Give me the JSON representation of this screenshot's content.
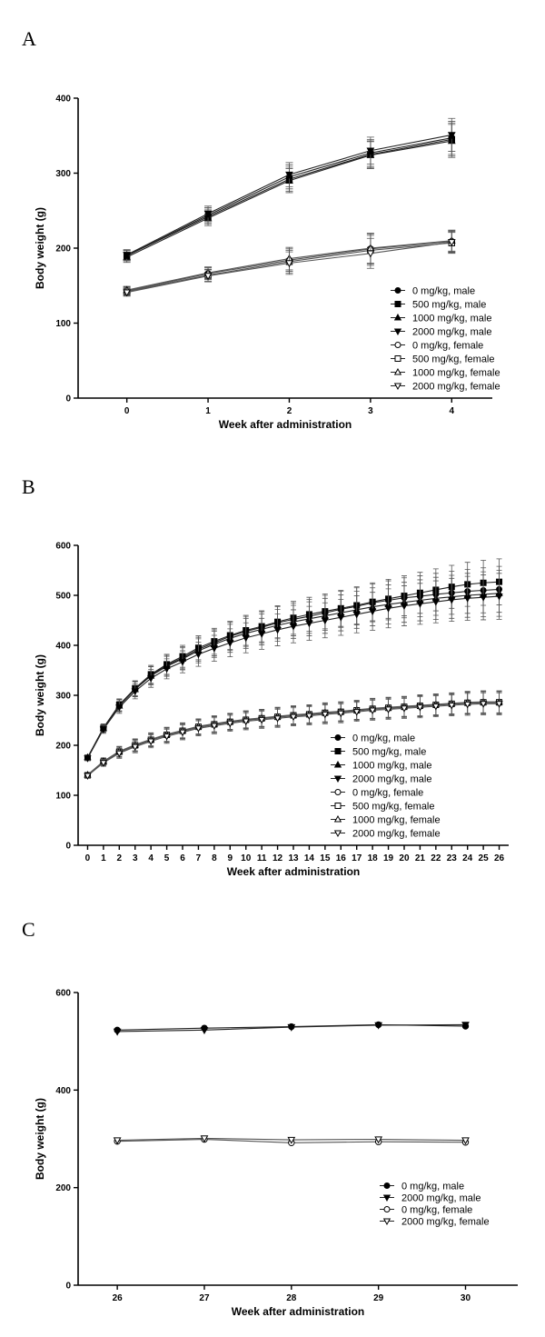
{
  "panels": {
    "A": {
      "letter": "A"
    },
    "B": {
      "letter": "B"
    },
    "C": {
      "letter": "C"
    }
  },
  "chart_data": [
    {
      "id": "A",
      "type": "line",
      "title": "",
      "xlabel": "Week after administration",
      "ylabel": "Body weight (g)",
      "xlim": [
        -0.6,
        4.5
      ],
      "ylim": [
        0,
        400
      ],
      "xticks": [
        0,
        1,
        2,
        3,
        4
      ],
      "yticks": [
        0,
        100,
        200,
        300,
        400
      ],
      "legend_position": "bottom-right",
      "x": [
        0,
        1,
        2,
        3,
        4
      ],
      "series": [
        {
          "name": "0 mg/kg, male",
          "marker": "circle",
          "filled": true,
          "values": [
            190,
            244,
            295,
            327,
            347
          ],
          "err": [
            7,
            10,
            16,
            18,
            22
          ]
        },
        {
          "name": "500 mg/kg, male",
          "marker": "square",
          "filled": true,
          "values": [
            190,
            242,
            292,
            325,
            345
          ],
          "err": [
            7,
            10,
            16,
            18,
            22
          ]
        },
        {
          "name": "1000 mg/kg, male",
          "marker": "triangle-up",
          "filled": true,
          "values": [
            188,
            240,
            290,
            324,
            343
          ],
          "err": [
            7,
            10,
            16,
            18,
            22
          ]
        },
        {
          "name": "2000 mg/kg, male",
          "marker": "triangle-down",
          "filled": true,
          "values": [
            191,
            246,
            298,
            330,
            351
          ],
          "err": [
            7,
            10,
            16,
            18,
            22
          ]
        },
        {
          "name": "0 mg/kg, female",
          "marker": "circle",
          "filled": false,
          "values": [
            143,
            166,
            184,
            199,
            209
          ],
          "err": [
            5,
            8,
            15,
            20,
            14
          ]
        },
        {
          "name": "500 mg/kg, female",
          "marker": "square",
          "filled": false,
          "values": [
            142,
            164,
            182,
            197,
            207
          ],
          "err": [
            5,
            8,
            15,
            20,
            14
          ]
        },
        {
          "name": "1000 mg/kg, female",
          "marker": "triangle-up",
          "filled": false,
          "values": [
            144,
            167,
            186,
            200,
            210
          ],
          "err": [
            5,
            8,
            15,
            20,
            14
          ]
        },
        {
          "name": "2000 mg/kg, female",
          "marker": "triangle-down",
          "filled": false,
          "values": [
            141,
            163,
            180,
            193,
            208
          ],
          "err": [
            5,
            8,
            15,
            20,
            14
          ]
        }
      ]
    },
    {
      "id": "B",
      "type": "line",
      "title": "",
      "xlabel": "Week after administration",
      "ylabel": "Body weight (g)",
      "xlim": [
        -0.6,
        26.6
      ],
      "ylim": [
        0,
        600
      ],
      "xticks": [
        0,
        1,
        2,
        3,
        4,
        5,
        6,
        7,
        8,
        9,
        10,
        11,
        12,
        13,
        14,
        15,
        16,
        17,
        18,
        19,
        20,
        21,
        22,
        23,
        24,
        25,
        26
      ],
      "yticks": [
        0,
        100,
        200,
        300,
        400,
        500,
        600
      ],
      "legend_position": "bottom-right",
      "x": [
        0,
        1,
        2,
        3,
        4,
        5,
        6,
        7,
        8,
        9,
        10,
        11,
        12,
        13,
        14,
        15,
        16,
        17,
        18,
        19,
        20,
        21,
        22,
        23,
        24,
        25,
        26
      ],
      "series": [
        {
          "name": "0 mg/kg, male",
          "marker": "circle",
          "filled": true,
          "values": [
            175,
            235,
            280,
            313,
            340,
            360,
            375,
            392,
            405,
            418,
            428,
            436,
            445,
            452,
            458,
            465,
            472,
            478,
            485,
            490,
            495,
            498,
            502,
            505,
            508,
            510,
            512
          ],
          "err": [
            4,
            8,
            12,
            15,
            18,
            20,
            22,
            24,
            26,
            28,
            30,
            31,
            32,
            33,
            34,
            35,
            36,
            37,
            38,
            39,
            40,
            41,
            42,
            43,
            44,
            45,
            46
          ]
        },
        {
          "name": "500 mg/kg, male",
          "marker": "square",
          "filled": true,
          "values": [
            175,
            235,
            281,
            314,
            342,
            362,
            378,
            395,
            408,
            420,
            430,
            438,
            447,
            455,
            462,
            468,
            474,
            480,
            487,
            493,
            499,
            505,
            511,
            517,
            522,
            525,
            527
          ],
          "err": [
            4,
            8,
            12,
            15,
            18,
            20,
            22,
            24,
            26,
            28,
            30,
            31,
            32,
            33,
            34,
            35,
            36,
            37,
            38,
            39,
            40,
            41,
            42,
            43,
            44,
            45,
            46
          ]
        },
        {
          "name": "1000 mg/kg, male",
          "marker": "triangle-up",
          "filled": true,
          "values": [
            176,
            234,
            279,
            312,
            339,
            358,
            373,
            389,
            402,
            414,
            424,
            432,
            440,
            447,
            453,
            459,
            465,
            471,
            477,
            482,
            486,
            490,
            494,
            497,
            500,
            502,
            504
          ],
          "err": [
            4,
            8,
            12,
            15,
            18,
            20,
            22,
            24,
            26,
            28,
            30,
            31,
            32,
            33,
            34,
            35,
            36,
            37,
            38,
            39,
            40,
            41,
            42,
            43,
            44,
            45,
            46
          ]
        },
        {
          "name": "2000 mg/kg, male",
          "marker": "triangle-down",
          "filled": true,
          "values": [
            174,
            232,
            276,
            308,
            334,
            353,
            367,
            382,
            394,
            405,
            415,
            423,
            431,
            438,
            444,
            450,
            456,
            462,
            468,
            474,
            479,
            483,
            487,
            491,
            494,
            496,
            498
          ],
          "err": [
            4,
            8,
            12,
            15,
            18,
            20,
            22,
            24,
            26,
            28,
            30,
            31,
            32,
            33,
            34,
            35,
            36,
            37,
            38,
            39,
            40,
            41,
            42,
            43,
            44,
            45,
            46
          ]
        },
        {
          "name": "0 mg/kg, female",
          "marker": "circle",
          "filled": false,
          "values": [
            140,
            166,
            186,
            199,
            210,
            220,
            228,
            236,
            241,
            246,
            250,
            253,
            256,
            259,
            261,
            264,
            266,
            269,
            272,
            274,
            276,
            278,
            280,
            282,
            284,
            285,
            285
          ],
          "err": [
            3,
            7,
            10,
            12,
            13,
            14,
            15,
            15,
            16,
            16,
            17,
            17,
            18,
            18,
            18,
            19,
            19,
            19,
            20,
            20,
            20,
            21,
            21,
            21,
            22,
            22,
            22
          ]
        },
        {
          "name": "500 mg/kg, female",
          "marker": "square",
          "filled": false,
          "values": [
            140,
            167,
            187,
            200,
            211,
            221,
            229,
            237,
            242,
            247,
            251,
            254,
            257,
            260,
            262,
            265,
            267,
            270,
            273,
            275,
            277,
            279,
            281,
            283,
            285,
            286,
            286
          ],
          "err": [
            3,
            7,
            10,
            12,
            13,
            14,
            15,
            15,
            16,
            16,
            17,
            17,
            18,
            18,
            18,
            19,
            19,
            19,
            20,
            20,
            20,
            21,
            21,
            21,
            22,
            22,
            22
          ]
        },
        {
          "name": "1000 mg/kg, female",
          "marker": "triangle-up",
          "filled": false,
          "values": [
            141,
            168,
            188,
            201,
            212,
            222,
            230,
            238,
            243,
            248,
            252,
            255,
            258,
            261,
            263,
            266,
            268,
            271,
            274,
            276,
            278,
            280,
            282,
            284,
            286,
            287,
            287
          ],
          "err": [
            3,
            7,
            10,
            12,
            13,
            14,
            15,
            15,
            16,
            16,
            17,
            17,
            18,
            18,
            18,
            19,
            19,
            19,
            20,
            20,
            20,
            21,
            21,
            21,
            22,
            22,
            22
          ]
        },
        {
          "name": "2000 mg/kg, female",
          "marker": "triangle-down",
          "filled": false,
          "values": [
            139,
            165,
            184,
            197,
            208,
            218,
            226,
            234,
            239,
            244,
            248,
            251,
            254,
            257,
            259,
            262,
            264,
            267,
            270,
            272,
            274,
            276,
            278,
            280,
            282,
            283,
            283
          ],
          "err": [
            3,
            7,
            10,
            12,
            13,
            14,
            15,
            15,
            16,
            16,
            17,
            17,
            18,
            18,
            18,
            19,
            19,
            19,
            20,
            20,
            20,
            21,
            21,
            21,
            22,
            22,
            22
          ]
        }
      ]
    },
    {
      "id": "C",
      "type": "line",
      "title": "",
      "xlabel": "Week after administration",
      "ylabel": "Body weight (g)",
      "xlim": [
        25.55,
        30.6
      ],
      "ylim": [
        0,
        600
      ],
      "xticks": [
        26,
        27,
        28,
        29,
        30
      ],
      "yticks": [
        0,
        200,
        400,
        600
      ],
      "legend_position": "bottom-right",
      "x": [
        26,
        27,
        28,
        29,
        30
      ],
      "series": [
        {
          "name": "0 mg/kg, male",
          "marker": "circle",
          "filled": true,
          "values": [
            523,
            527,
            530,
            534,
            531
          ],
          "err": [
            0,
            0,
            0,
            0,
            0
          ]
        },
        {
          "name": "2000 mg/kg, male",
          "marker": "triangle-down",
          "filled": true,
          "values": [
            520,
            523,
            529,
            533,
            534
          ],
          "err": [
            0,
            0,
            0,
            0,
            0
          ]
        },
        {
          "name": "0 mg/kg, female",
          "marker": "circle",
          "filled": false,
          "values": [
            295,
            299,
            292,
            294,
            293
          ],
          "err": [
            0,
            0,
            0,
            0,
            0
          ]
        },
        {
          "name": "2000 mg/kg, female",
          "marker": "triangle-down",
          "filled": false,
          "values": [
            297,
            301,
            298,
            299,
            297
          ],
          "err": [
            0,
            0,
            0,
            0,
            0
          ]
        }
      ]
    }
  ]
}
